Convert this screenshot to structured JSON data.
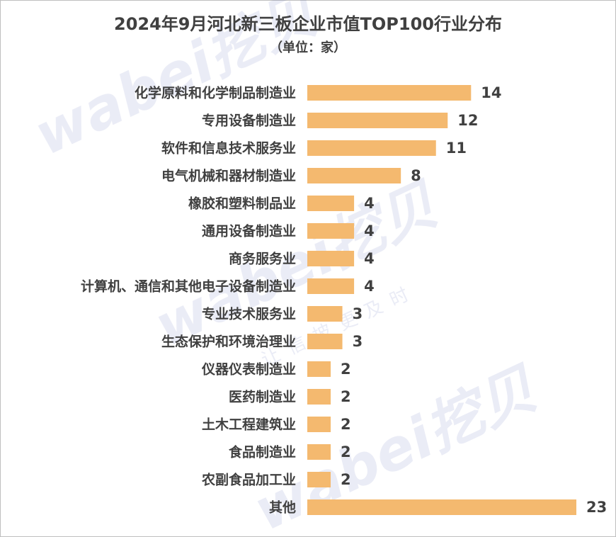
{
  "chart_data": {
    "type": "bar",
    "orientation": "horizontal",
    "title": "2024年9月河北新三板企业市值TOP100行业分布",
    "subtitle": "（单位：家）",
    "categories": [
      "化学原料和化学制品制造业",
      "专用设备制造业",
      "软件和信息技术服务业",
      "电气机械和器材制造业",
      "橡胶和塑料制品业",
      "通用设备制造业",
      "商务服务业",
      "计算机、通信和其他电子设备制造业",
      "专业技术服务业",
      "生态保护和环境治理业",
      "仪器仪表制造业",
      "医药制造业",
      "土木工程建筑业",
      "食品制造业",
      "农副食品加工业",
      "其他"
    ],
    "values": [
      14,
      12,
      11,
      8,
      4,
      4,
      4,
      4,
      3,
      3,
      2,
      2,
      2,
      2,
      2,
      23
    ],
    "color": "#f4b96f"
  },
  "watermark": {
    "logo": "wabei挖贝",
    "slogan": "让信披更及时"
  }
}
